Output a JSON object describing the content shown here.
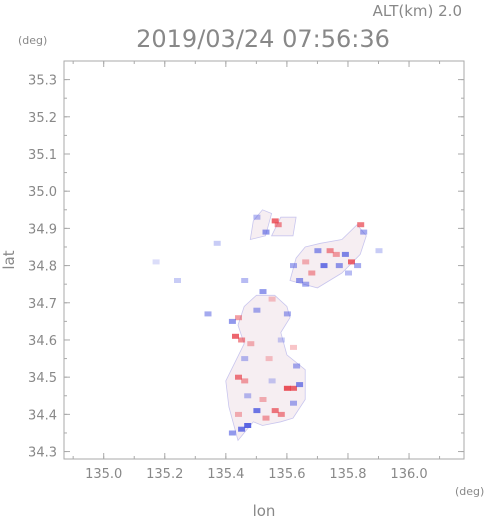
{
  "chart_data": {
    "type": "heatmap",
    "title": "2019/03/24 07:56:36",
    "subtitle": "ALT(km) 2.0",
    "xlabel": "lon",
    "ylabel": "lat",
    "xunit": "(deg)",
    "yunit": "(deg)",
    "xlim": [
      134.87,
      136.18
    ],
    "ylim": [
      34.28,
      35.35
    ],
    "xticks": [
      135.0,
      135.2,
      135.4,
      135.6,
      135.8,
      136.0
    ],
    "yticks": [
      34.3,
      34.4,
      34.5,
      34.6,
      34.7,
      34.8,
      34.9,
      35.0,
      35.1,
      35.2,
      35.3
    ],
    "xtick_labels": [
      "135.0",
      "135.2",
      "135.4",
      "135.6",
      "135.8",
      "136.0"
    ],
    "ytick_labels": [
      "34.3",
      "34.4",
      "34.5",
      "34.6",
      "34.7",
      "34.8",
      "34.9",
      "35.0",
      "35.1",
      "35.2",
      "35.3"
    ],
    "grid": false,
    "colors": {
      "positive": "#e8404a",
      "negative": "#4a55e0",
      "neutral": "#f6eef2",
      "axis": "#aaaaaa",
      "text": "#888888"
    },
    "regions": [
      {
        "name": "main-body",
        "tone": "neutral",
        "lon": [
          135.44,
          135.49,
          135.52,
          135.58,
          135.62,
          135.66,
          135.66,
          135.6,
          135.58,
          135.61,
          135.6,
          135.56,
          135.5,
          135.46,
          135.44,
          135.46,
          135.43,
          135.4,
          135.41,
          135.44
        ],
        "lat": [
          34.33,
          34.38,
          34.37,
          34.38,
          34.39,
          34.44,
          34.52,
          34.56,
          34.62,
          34.66,
          34.69,
          34.72,
          34.72,
          34.69,
          34.64,
          34.59,
          34.54,
          34.49,
          34.42,
          34.33
        ]
      },
      {
        "name": "north-east-lobe",
        "tone": "neutral",
        "lon": [
          135.61,
          135.7,
          135.78,
          135.84,
          135.86,
          135.83,
          135.78,
          135.71,
          135.66,
          135.63,
          135.61
        ],
        "lat": [
          34.76,
          34.74,
          34.78,
          34.83,
          34.88,
          34.91,
          34.87,
          34.86,
          34.85,
          34.82,
          34.76
        ]
      },
      {
        "name": "north-west-patch",
        "tone": "neutral",
        "lon": [
          135.48,
          135.53,
          135.55,
          135.52,
          135.49,
          135.48
        ],
        "lat": [
          34.87,
          34.88,
          34.94,
          34.95,
          34.92,
          34.87
        ]
      },
      {
        "name": "upper-strip",
        "tone": "neutral",
        "lon": [
          135.55,
          135.62,
          135.63,
          135.58,
          135.55
        ],
        "lat": [
          34.88,
          34.88,
          34.93,
          34.93,
          34.88
        ]
      }
    ],
    "cells": [
      {
        "lon": 135.56,
        "lat": 34.92,
        "v": 0.8
      },
      {
        "lon": 135.57,
        "lat": 34.91,
        "v": 0.6
      },
      {
        "lon": 135.5,
        "lat": 34.93,
        "v": -0.4
      },
      {
        "lon": 135.53,
        "lat": 34.89,
        "v": -0.6
      },
      {
        "lon": 135.84,
        "lat": 34.91,
        "v": 0.7
      },
      {
        "lon": 135.85,
        "lat": 34.89,
        "v": -0.5
      },
      {
        "lon": 135.74,
        "lat": 34.84,
        "v": 0.6
      },
      {
        "lon": 135.76,
        "lat": 34.83,
        "v": 0.5
      },
      {
        "lon": 135.79,
        "lat": 34.83,
        "v": -0.7
      },
      {
        "lon": 135.7,
        "lat": 34.84,
        "v": -0.6
      },
      {
        "lon": 135.66,
        "lat": 34.81,
        "v": 0.4
      },
      {
        "lon": 135.81,
        "lat": 34.81,
        "v": 0.8
      },
      {
        "lon": 135.83,
        "lat": 34.8,
        "v": -0.5
      },
      {
        "lon": 135.72,
        "lat": 34.8,
        "v": -0.8
      },
      {
        "lon": 135.77,
        "lat": 34.8,
        "v": -0.6
      },
      {
        "lon": 135.68,
        "lat": 34.78,
        "v": 0.5
      },
      {
        "lon": 135.8,
        "lat": 34.78,
        "v": -0.4
      },
      {
        "lon": 135.62,
        "lat": 34.8,
        "v": -0.5
      },
      {
        "lon": 135.64,
        "lat": 34.76,
        "v": -0.6
      },
      {
        "lon": 135.66,
        "lat": 34.75,
        "v": -0.5
      },
      {
        "lon": 135.46,
        "lat": 34.76,
        "v": -0.4
      },
      {
        "lon": 135.52,
        "lat": 34.73,
        "v": -0.6
      },
      {
        "lon": 135.55,
        "lat": 34.71,
        "v": 0.3
      },
      {
        "lon": 135.5,
        "lat": 34.68,
        "v": -0.5
      },
      {
        "lon": 135.44,
        "lat": 34.66,
        "v": 0.5
      },
      {
        "lon": 135.42,
        "lat": 34.65,
        "v": -0.6
      },
      {
        "lon": 135.6,
        "lat": 34.67,
        "v": -0.5
      },
      {
        "lon": 135.43,
        "lat": 34.61,
        "v": 0.8
      },
      {
        "lon": 135.45,
        "lat": 34.6,
        "v": 0.6
      },
      {
        "lon": 135.48,
        "lat": 34.59,
        "v": 0.4
      },
      {
        "lon": 135.58,
        "lat": 34.6,
        "v": -0.3
      },
      {
        "lon": 135.62,
        "lat": 34.58,
        "v": 0.3
      },
      {
        "lon": 135.46,
        "lat": 34.55,
        "v": -0.4
      },
      {
        "lon": 135.54,
        "lat": 34.55,
        "v": 0.3
      },
      {
        "lon": 135.63,
        "lat": 34.53,
        "v": -0.5
      },
      {
        "lon": 135.44,
        "lat": 34.5,
        "v": 0.7
      },
      {
        "lon": 135.46,
        "lat": 34.49,
        "v": 0.5
      },
      {
        "lon": 135.55,
        "lat": 34.49,
        "v": -0.3
      },
      {
        "lon": 135.6,
        "lat": 34.47,
        "v": 0.9
      },
      {
        "lon": 135.62,
        "lat": 34.47,
        "v": 0.8
      },
      {
        "lon": 135.64,
        "lat": 34.48,
        "v": -0.7
      },
      {
        "lon": 135.47,
        "lat": 34.45,
        "v": -0.4
      },
      {
        "lon": 135.52,
        "lat": 34.44,
        "v": 0.4
      },
      {
        "lon": 135.62,
        "lat": 34.43,
        "v": -0.5
      },
      {
        "lon": 135.5,
        "lat": 34.41,
        "v": -0.8
      },
      {
        "lon": 135.56,
        "lat": 34.41,
        "v": 0.7
      },
      {
        "lon": 135.58,
        "lat": 34.4,
        "v": 0.6
      },
      {
        "lon": 135.44,
        "lat": 34.4,
        "v": 0.4
      },
      {
        "lon": 135.47,
        "lat": 34.37,
        "v": -0.9
      },
      {
        "lon": 135.45,
        "lat": 34.36,
        "v": -0.8
      },
      {
        "lon": 135.42,
        "lat": 34.35,
        "v": -0.6
      },
      {
        "lon": 135.53,
        "lat": 34.39,
        "v": 0.5
      },
      {
        "lon": 135.34,
        "lat": 34.67,
        "v": -0.5
      },
      {
        "lon": 135.24,
        "lat": 34.76,
        "v": -0.3
      },
      {
        "lon": 135.17,
        "lat": 34.81,
        "v": -0.2
      },
      {
        "lon": 135.37,
        "lat": 34.86,
        "v": -0.3
      },
      {
        "lon": 135.9,
        "lat": 34.84,
        "v": -0.3
      }
    ]
  }
}
